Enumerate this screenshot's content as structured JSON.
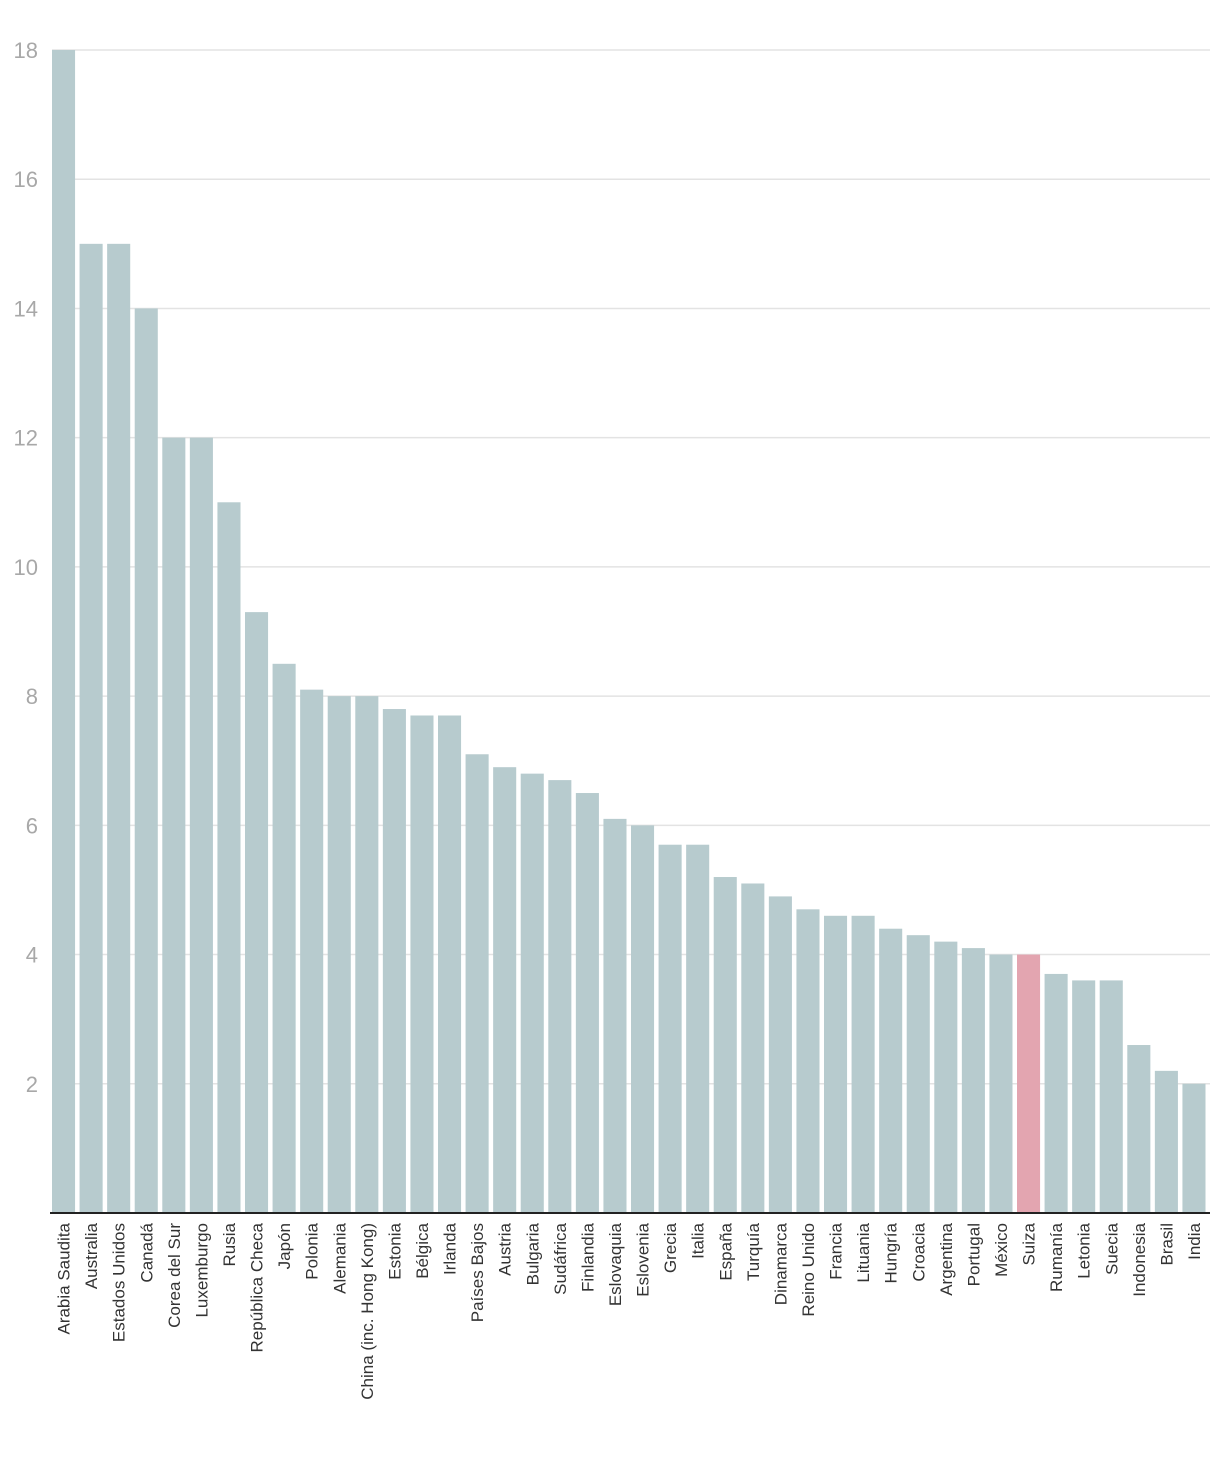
{
  "chart_data": {
    "type": "bar",
    "categories": [
      "Arabia Saudita",
      "Australia",
      "Estados Unidos",
      "Canadá",
      "Corea del Sur",
      "Luxemburgo",
      "Rusia",
      "República Checa",
      "Japón",
      "Polonia",
      "Alemania",
      "China (inc. Hong Kong)",
      "Estonia",
      "Bélgica",
      "Irlanda",
      "Países Bajos",
      "Austria",
      "Bulgaria",
      "Sudáfrica",
      "Finlandia",
      "Eslovaquia",
      "Eslovenia",
      "Grecia",
      "Italia",
      "España",
      "Turquía",
      "Dinamarca",
      "Reino Unido",
      "Francia",
      "Lituania",
      "Hungría",
      "Croacia",
      "Argentina",
      "Portugal",
      "México",
      "Suiza",
      "Rumanía",
      "Letonia",
      "Suecia",
      "Indonesia",
      "Brasil",
      "India"
    ],
    "values": [
      18,
      15,
      15,
      14,
      12,
      12,
      11,
      9.3,
      8.5,
      8.1,
      8,
      8,
      7.8,
      7.7,
      7.7,
      7.1,
      6.9,
      6.8,
      6.7,
      6.5,
      6.1,
      6,
      5.7,
      5.7,
      5.2,
      5.1,
      4.9,
      4.7,
      4.6,
      4.6,
      4.4,
      4.3,
      4.2,
      4.1,
      4,
      4,
      3.7,
      3.6,
      3.6,
      2.6,
      2.2,
      2
    ],
    "highlight": "Suiza",
    "ylim": [
      0,
      18
    ],
    "yticks": [
      2,
      4,
      6,
      8,
      10,
      12,
      14,
      16,
      18
    ],
    "grid": true,
    "colors": {
      "bar": "#b7cbce",
      "highlight": "#e3a5b0",
      "grid": "#e3e3e3",
      "axis": "#222222"
    }
  }
}
